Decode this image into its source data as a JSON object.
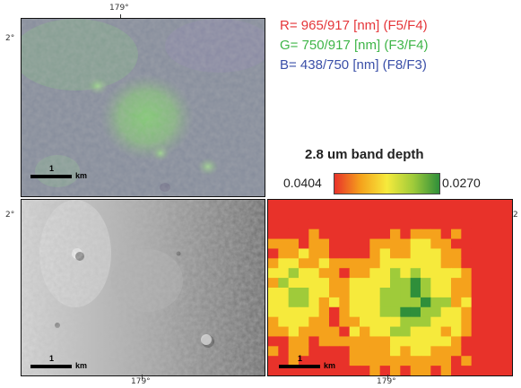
{
  "ticks": {
    "top_lon": "179°",
    "left_lat_top": "2°",
    "left_lat_bottom": "2°",
    "right_lat": "2",
    "bottom_lon_left": "179°",
    "bottom_lon_right": "179°"
  },
  "panels": {
    "color_composite": {
      "scale_num": "1",
      "scale_unit": "km"
    },
    "grayscale": {
      "scale_num": "1",
      "scale_unit": "km"
    },
    "band_depth_map": {
      "scale_num": "1",
      "scale_unit": "km"
    }
  },
  "rgb_legend": {
    "r": {
      "text": "R= 965/917 [nm] (F5/F4)",
      "color": "#e5363a"
    },
    "g": {
      "text": "G= 750/917 [nm] (F3/F4)",
      "color": "#3fb548"
    },
    "b": {
      "text": "B= 438/750 [nm] (F8/F3)",
      "color": "#3a4fa8"
    }
  },
  "colorbar": {
    "title": "2.8 um band depth",
    "min_label": "0.0404",
    "max_label": "0.0270",
    "colors": [
      "#e8322a",
      "#f5a21c",
      "#f6ea3c",
      "#9fcb3a",
      "#2f8f3a"
    ]
  }
}
